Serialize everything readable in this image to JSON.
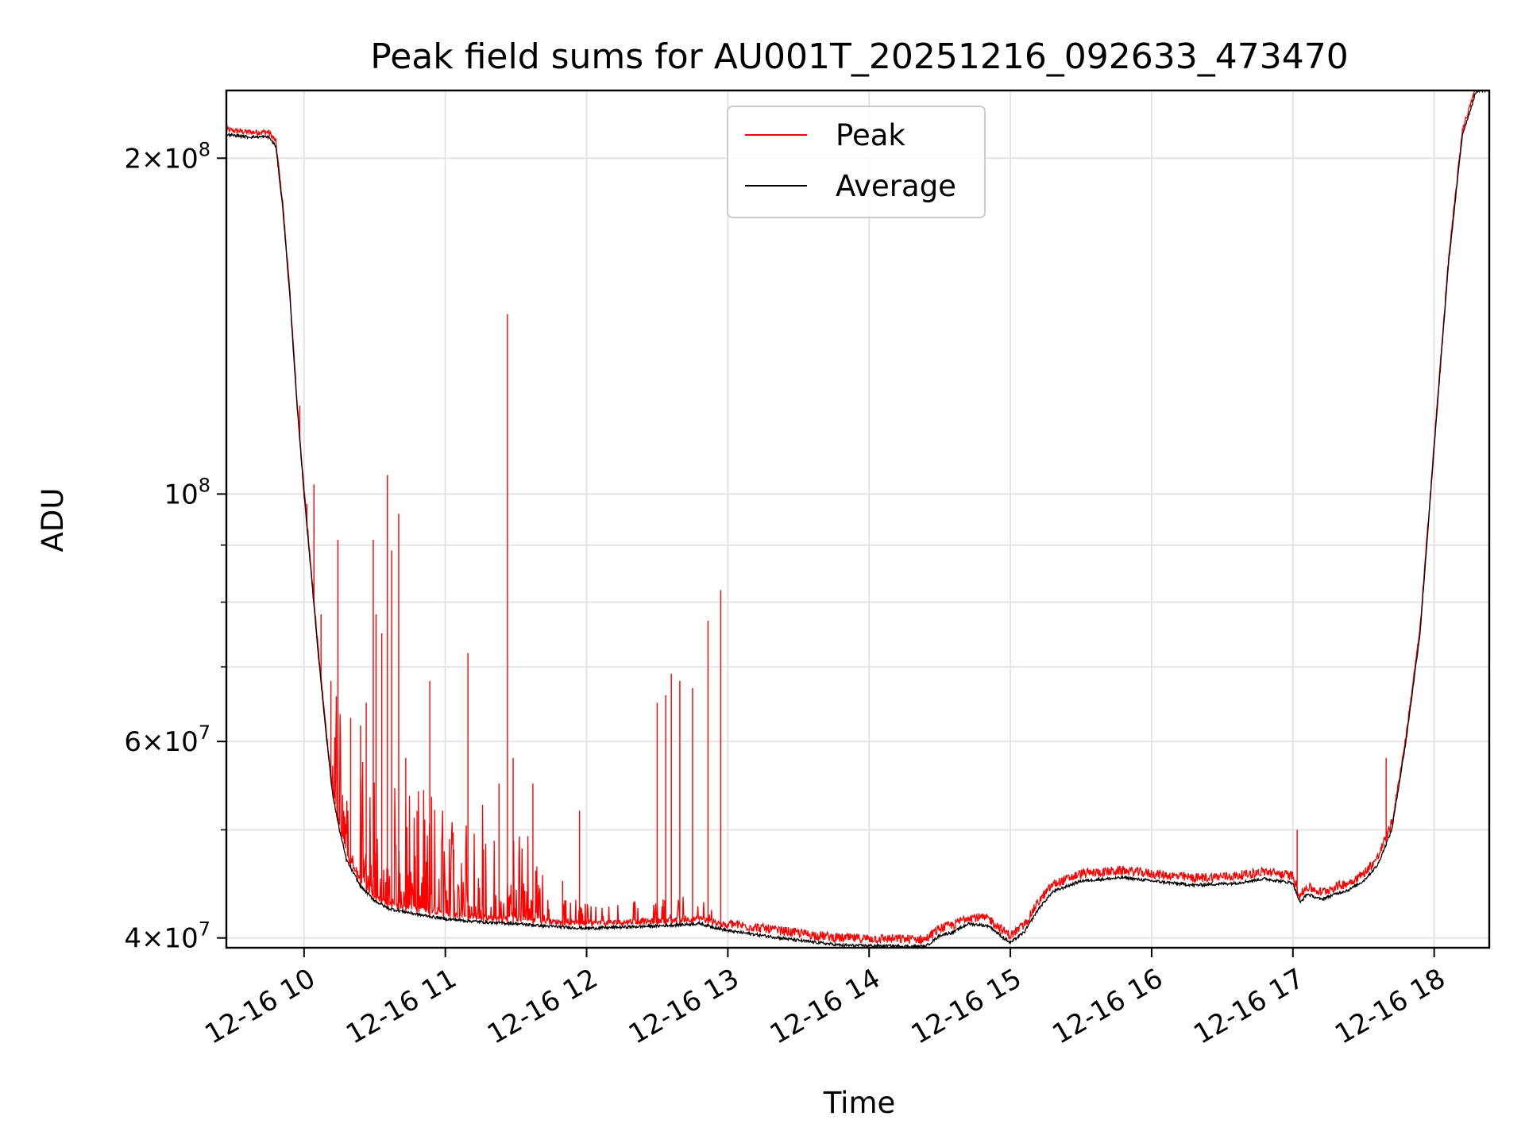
{
  "chart_data": {
    "type": "line",
    "title": "Peak field sums for AU001T_20251216_092633_473470",
    "xlabel": "Time",
    "ylabel": "ADU",
    "yscale": "log",
    "grid": true,
    "legend_position": "upper-center",
    "xlim_hours": [
      9.45,
      18.39
    ],
    "ylim": [
      39200000,
      230000000
    ],
    "x_tick_labels": [
      "12-16 10",
      "12-16 11",
      "12-16 12",
      "12-16 13",
      "12-16 14",
      "12-16 15",
      "12-16 16",
      "12-16 17",
      "12-16 18"
    ],
    "x_tick_hours": [
      10,
      11,
      12,
      13,
      14,
      15,
      16,
      17,
      18
    ],
    "y_ticks": [
      {
        "value": 40000000,
        "mantissa": "4",
        "exp": "7"
      },
      {
        "value": 60000000,
        "mantissa": "6",
        "exp": "7"
      },
      {
        "value": 100000000,
        "mantissa": "",
        "exp": "8"
      },
      {
        "value": 200000000,
        "mantissa": "2",
        "exp": "8"
      }
    ],
    "y_minor_ticks": [
      50000000,
      70000000,
      80000000,
      90000000
    ],
    "series": [
      {
        "name": "Peak",
        "color": "#ff0000"
      },
      {
        "name": "Average",
        "color": "#000000"
      }
    ],
    "average_curve": [
      [
        9.45,
        210000000.0
      ],
      [
        9.6,
        209000000.0
      ],
      [
        9.75,
        209000000.0
      ],
      [
        9.8,
        205000000.0
      ],
      [
        9.85,
        180000000.0
      ],
      [
        9.9,
        150000000.0
      ],
      [
        9.95,
        120000000.0
      ],
      [
        10.0,
        100000000.0
      ],
      [
        10.05,
        85000000.0
      ],
      [
        10.1,
        72000000.0
      ],
      [
        10.15,
        62000000.0
      ],
      [
        10.2,
        54000000.0
      ],
      [
        10.25,
        50000000.0
      ],
      [
        10.3,
        47000000.0
      ],
      [
        10.4,
        44500000.0
      ],
      [
        10.5,
        43200000.0
      ],
      [
        10.6,
        42500000.0
      ],
      [
        10.8,
        42000000.0
      ],
      [
        11.0,
        41600000.0
      ],
      [
        11.3,
        41300000.0
      ],
      [
        11.5,
        41200000.0
      ],
      [
        11.7,
        41000000.0
      ],
      [
        12.0,
        40800000.0
      ],
      [
        12.5,
        41000000.0
      ],
      [
        12.8,
        41200000.0
      ],
      [
        13.0,
        40600000.0
      ],
      [
        13.5,
        39800000.0
      ],
      [
        13.8,
        39400000.0
      ],
      [
        14.4,
        39300000.0
      ],
      [
        14.5,
        40200000.0
      ],
      [
        14.6,
        40500000.0
      ],
      [
        14.7,
        41200000.0
      ],
      [
        14.85,
        41000000.0
      ],
      [
        14.95,
        40000000.0
      ],
      [
        15.0,
        39600000.0
      ],
      [
        15.1,
        40500000.0
      ],
      [
        15.2,
        42500000.0
      ],
      [
        15.3,
        44000000.0
      ],
      [
        15.5,
        45000000.0
      ],
      [
        15.8,
        45300000.0
      ],
      [
        16.0,
        45000000.0
      ],
      [
        16.3,
        44600000.0
      ],
      [
        16.6,
        44800000.0
      ],
      [
        16.8,
        45200000.0
      ],
      [
        17.0,
        44800000.0
      ],
      [
        17.05,
        43000000.0
      ],
      [
        17.1,
        43800000.0
      ],
      [
        17.2,
        43300000.0
      ],
      [
        17.3,
        43800000.0
      ],
      [
        17.4,
        44200000.0
      ],
      [
        17.5,
        45000000.0
      ],
      [
        17.6,
        46500000.0
      ],
      [
        17.7,
        50000000.0
      ],
      [
        17.8,
        60000000.0
      ],
      [
        17.9,
        75000000.0
      ],
      [
        18.0,
        110000000.0
      ],
      [
        18.1,
        160000000.0
      ],
      [
        18.2,
        210000000.0
      ],
      [
        18.3,
        230000000.0
      ],
      [
        18.39,
        230000000.0
      ]
    ],
    "peak_spikes": [
      [
        9.97,
        120000000.0
      ],
      [
        10.02,
        98000000.0
      ],
      [
        10.07,
        102000000.0
      ],
      [
        10.12,
        78000000.0
      ],
      [
        10.19,
        68000000.0
      ],
      [
        10.24,
        91000000.0
      ],
      [
        10.33,
        63000000.0
      ],
      [
        10.4,
        62000000.0
      ],
      [
        10.44,
        65000000.0
      ],
      [
        10.49,
        91000000.0
      ],
      [
        10.51,
        78000000.0
      ],
      [
        10.55,
        75000000.0
      ],
      [
        10.59,
        104000000.0
      ],
      [
        10.62,
        89000000.0
      ],
      [
        10.67,
        96000000.0
      ],
      [
        10.72,
        58000000.0
      ],
      [
        10.8,
        52000000.0
      ],
      [
        10.89,
        68000000.0
      ],
      [
        11.06,
        48000000.0
      ],
      [
        11.16,
        72000000.0
      ],
      [
        11.27,
        48000000.0
      ],
      [
        11.38,
        55000000.0
      ],
      [
        11.44,
        145000000.0
      ],
      [
        11.48,
        58000000.0
      ],
      [
        11.62,
        55000000.0
      ],
      [
        11.83,
        45000000.0
      ],
      [
        11.95,
        52000000.0
      ],
      [
        12.5,
        65000000.0
      ],
      [
        12.56,
        66000000.0
      ],
      [
        12.6,
        69000000.0
      ],
      [
        12.66,
        68000000.0
      ],
      [
        12.75,
        67000000.0
      ],
      [
        12.86,
        77000000.0
      ],
      [
        12.95,
        82000000.0
      ],
      [
        17.03,
        50000000.0
      ],
      [
        17.66,
        58000000.0
      ]
    ]
  }
}
